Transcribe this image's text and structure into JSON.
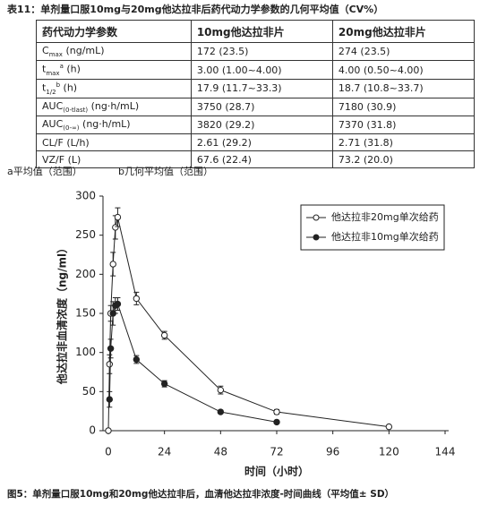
{
  "table": {
    "title": "表11：单剂量口服10mg与20mg他达拉非后药代动力学参数的几何平均值（CV%）",
    "header": [
      "药代动力学参数",
      "10mg他达拉非片",
      "20mg他达拉非片"
    ],
    "rows": [
      {
        "param": [
          {
            "t": "C"
          },
          {
            "sub": "max"
          },
          {
            "t": " (ng/mL)"
          }
        ],
        "v10": "172 (23.5)",
        "v20": "274 (23.5)"
      },
      {
        "param": [
          {
            "t": "t"
          },
          {
            "sub": "max"
          },
          {
            "sup": "a"
          },
          {
            "t": " (h)"
          }
        ],
        "v10": "3.00 (1.00~4.00)",
        "v20": "4.00 (0.50~4.00)"
      },
      {
        "param": [
          {
            "t": "t"
          },
          {
            "sub": "1/2"
          },
          {
            "sup": "b"
          },
          {
            "t": " (h)"
          }
        ],
        "v10": "17.9 (11.7~33.3)",
        "v20": "18.7 (10.8~33.7)"
      },
      {
        "param": [
          {
            "t": "AUC"
          },
          {
            "sub": "(0-tlast)"
          },
          {
            "t": " (ng·h/mL)"
          }
        ],
        "v10": "3750 (28.7)",
        "v20": "7180 (30.9)"
      },
      {
        "param": [
          {
            "t": "AUC"
          },
          {
            "sub": "(0-∞)"
          },
          {
            "t": " (ng·h/mL)"
          }
        ],
        "v10": "3820 (29.2)",
        "v20": "7370 (31.8)"
      },
      {
        "param": [
          {
            "t": "CL/F (L/h)"
          }
        ],
        "v10": "2.61 (29.2)",
        "v20": "2.71 (31.8)"
      },
      {
        "param": [
          {
            "t": "VZ/F (L)"
          }
        ],
        "v10": "67.6 (22.4)",
        "v20": "73.2 (20.0)"
      }
    ],
    "notes": [
      "a平均值（范围）",
      "b几何平均值（范围）"
    ]
  },
  "chart_data": {
    "type": "line",
    "xlabel": "时间（小时）",
    "ylabel": "他达拉非血清浓度（ng/ml）",
    "caption": "图5：单剂量口服10mg和20mg他达拉非后，血清他达拉非浓度-时间曲线（平均值± SD）",
    "xlim": [
      0,
      144
    ],
    "xticks": [
      0,
      24,
      48,
      72,
      96,
      120,
      144
    ],
    "ylim": [
      0,
      300
    ],
    "yticks": [
      0,
      50,
      100,
      150,
      200,
      250,
      300
    ],
    "legend": "top-right",
    "series": [
      {
        "name": "他达拉非20mg单次给药",
        "color": "#222222",
        "marker": "open",
        "x": [
          0,
          0.5,
          1,
          2,
          3,
          4,
          12,
          24,
          48,
          72,
          120
        ],
        "values": [
          0,
          85,
          150,
          213,
          260,
          273,
          169,
          122,
          52,
          24,
          5
        ],
        "errors": [
          0,
          12,
          10,
          15,
          15,
          12,
          8,
          5,
          5,
          3,
          1
        ]
      },
      {
        "name": "他达拉非10mg单次给药",
        "color": "#222222",
        "marker": "filled",
        "x": [
          0.5,
          1,
          2,
          3,
          4,
          12,
          24,
          48,
          72
        ],
        "values": [
          40,
          105,
          150,
          160,
          162,
          91,
          60,
          24,
          11
        ],
        "errors": [
          10,
          12,
          15,
          10,
          8,
          5,
          4,
          2,
          1
        ]
      }
    ]
  }
}
